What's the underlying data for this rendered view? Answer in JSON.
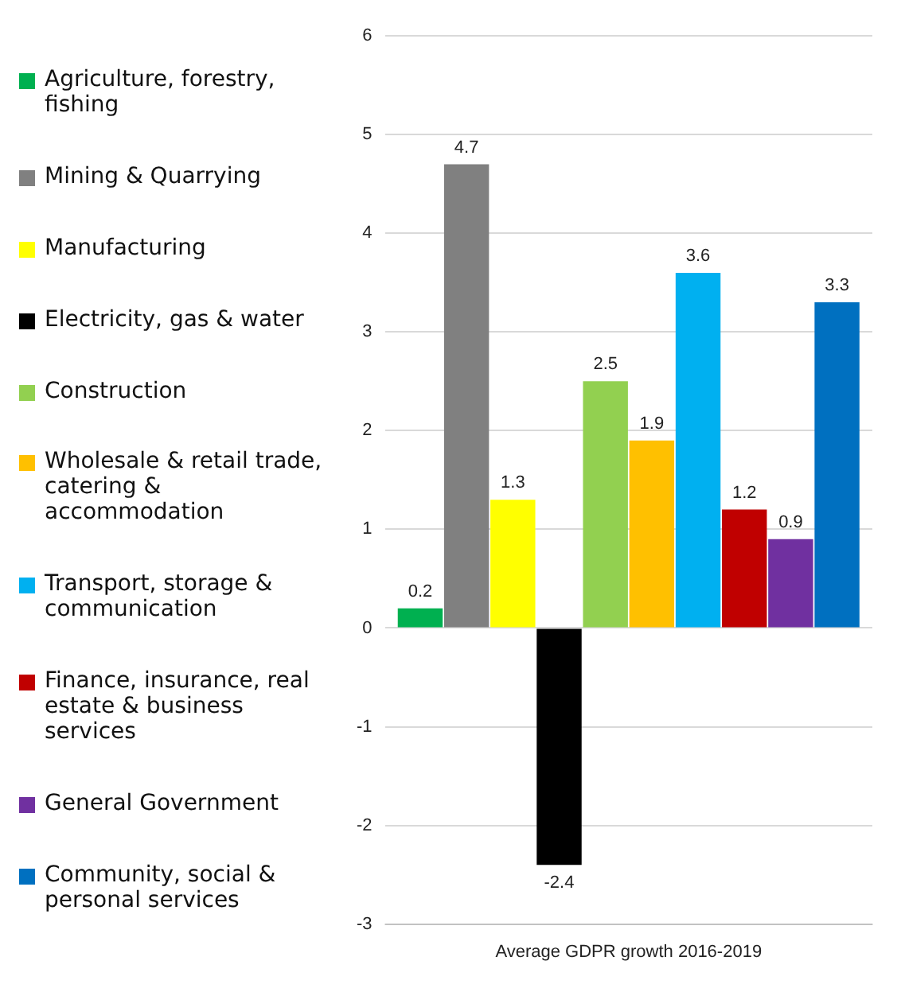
{
  "chart_data": {
    "type": "bar",
    "categories": [
      "Average GDPR growth 2016-2019"
    ],
    "series": [
      {
        "name": "Agriculture, forestry, fishing",
        "color": "#00b050",
        "values": [
          0.2
        ]
      },
      {
        "name": "Mining & Quarrying",
        "color": "#808080",
        "values": [
          4.7
        ]
      },
      {
        "name": "Manufacturing",
        "color": "#ffff00",
        "values": [
          1.3
        ]
      },
      {
        "name": "Electricity, gas & water",
        "color": "#000000",
        "values": [
          -2.4
        ]
      },
      {
        "name": "Construction",
        "color": "#92d050",
        "values": [
          2.5
        ]
      },
      {
        "name": "Wholesale & retail trade, catering & accommodation",
        "color": "#ffc000",
        "values": [
          1.9
        ]
      },
      {
        "name": "Transport, storage & communication",
        "color": "#00b0f0",
        "values": [
          3.6
        ]
      },
      {
        "name": "Finance, insurance, real estate & business services",
        "color": "#c00000",
        "values": [
          1.2
        ]
      },
      {
        "name": "General Government",
        "color": "#7030a0",
        "values": [
          0.9
        ]
      },
      {
        "name": "Community, social & personal services",
        "color": "#0070c0",
        "values": [
          3.3
        ]
      }
    ],
    "ylim": [
      -3,
      6
    ],
    "yticks": [
      -3,
      -2,
      -1,
      0,
      1,
      2,
      3,
      4,
      5,
      6
    ],
    "grid": "y",
    "legend": "left",
    "data_labels": true
  }
}
